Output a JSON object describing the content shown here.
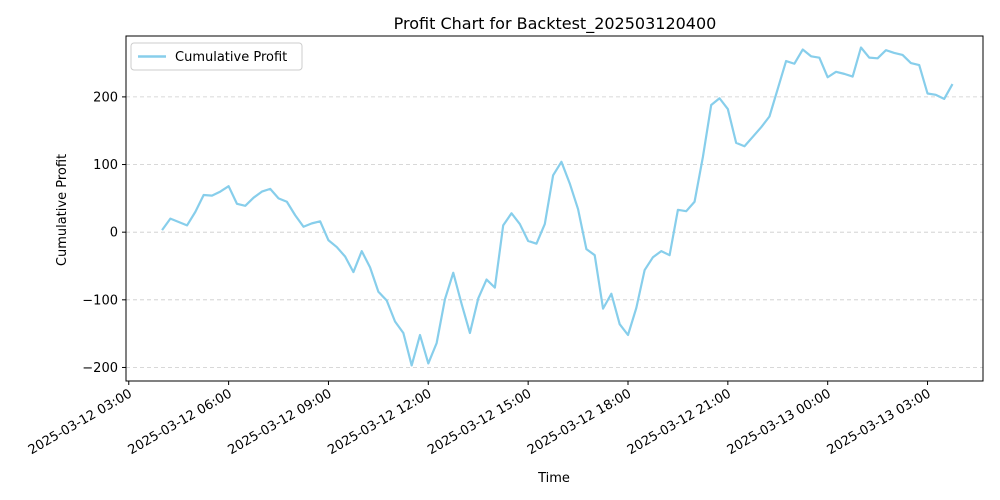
{
  "chart_data": {
    "type": "line",
    "title": "Profit Chart for Backtest_202503120400",
    "xlabel": "Time",
    "ylabel": "Cumulative Profit",
    "x_axis_type": "datetime",
    "xlim": [
      "2025-03-12 02:55",
      "2025-03-13 04:40"
    ],
    "ylim": [
      -220,
      290
    ],
    "grid": {
      "y": true,
      "x": false,
      "style": "dashed"
    },
    "legend": {
      "position": "top-left"
    },
    "x_ticks": [
      "2025-03-12 03:00",
      "2025-03-12 06:00",
      "2025-03-12 09:00",
      "2025-03-12 12:00",
      "2025-03-12 15:00",
      "2025-03-12 18:00",
      "2025-03-12 21:00",
      "2025-03-13 00:00",
      "2025-03-13 03:00"
    ],
    "y_ticks": [
      -200,
      -100,
      0,
      100,
      200
    ],
    "y_tick_labels": [
      "−200",
      "−100",
      "0",
      "100",
      "200"
    ],
    "series": [
      {
        "name": "Cumulative Profit",
        "color": "#87ceeb",
        "x": [
          "2025-03-12 04:00",
          "2025-03-12 04:15",
          "2025-03-12 04:30",
          "2025-03-12 04:45",
          "2025-03-12 05:00",
          "2025-03-12 05:15",
          "2025-03-12 05:30",
          "2025-03-12 05:45",
          "2025-03-12 06:00",
          "2025-03-12 06:15",
          "2025-03-12 06:30",
          "2025-03-12 06:45",
          "2025-03-12 07:00",
          "2025-03-12 07:15",
          "2025-03-12 07:30",
          "2025-03-12 07:45",
          "2025-03-12 08:00",
          "2025-03-12 08:15",
          "2025-03-12 08:30",
          "2025-03-12 08:45",
          "2025-03-12 09:00",
          "2025-03-12 09:15",
          "2025-03-12 09:30",
          "2025-03-12 09:45",
          "2025-03-12 10:00",
          "2025-03-12 10:15",
          "2025-03-12 10:30",
          "2025-03-12 10:45",
          "2025-03-12 11:00",
          "2025-03-12 11:15",
          "2025-03-12 11:30",
          "2025-03-12 11:45",
          "2025-03-12 12:00",
          "2025-03-12 12:15",
          "2025-03-12 12:30",
          "2025-03-12 12:45",
          "2025-03-12 13:00",
          "2025-03-12 13:15",
          "2025-03-12 13:30",
          "2025-03-12 13:45",
          "2025-03-12 14:00",
          "2025-03-12 14:15",
          "2025-03-12 14:30",
          "2025-03-12 14:45",
          "2025-03-12 15:00",
          "2025-03-12 15:15",
          "2025-03-12 15:30",
          "2025-03-12 15:45",
          "2025-03-12 16:00",
          "2025-03-12 16:15",
          "2025-03-12 16:30",
          "2025-03-12 16:45",
          "2025-03-12 17:00",
          "2025-03-12 17:15",
          "2025-03-12 17:30",
          "2025-03-12 17:45",
          "2025-03-12 18:00",
          "2025-03-12 18:15",
          "2025-03-12 18:30",
          "2025-03-12 18:45",
          "2025-03-12 19:00",
          "2025-03-12 19:15",
          "2025-03-12 19:30",
          "2025-03-12 19:45",
          "2025-03-12 20:00",
          "2025-03-12 20:15",
          "2025-03-12 20:30",
          "2025-03-12 20:45",
          "2025-03-12 21:00",
          "2025-03-12 21:15",
          "2025-03-12 21:30",
          "2025-03-12 21:45",
          "2025-03-12 22:00",
          "2025-03-12 22:15",
          "2025-03-12 22:30",
          "2025-03-12 22:45",
          "2025-03-12 23:00",
          "2025-03-12 23:15",
          "2025-03-12 23:30",
          "2025-03-12 23:45",
          "2025-03-13 00:00",
          "2025-03-13 00:15",
          "2025-03-13 00:30",
          "2025-03-13 00:45",
          "2025-03-13 01:00",
          "2025-03-13 01:15",
          "2025-03-13 01:30",
          "2025-03-13 01:45",
          "2025-03-13 02:00",
          "2025-03-13 02:15",
          "2025-03-13 02:30",
          "2025-03-13 02:45",
          "2025-03-13 03:00",
          "2025-03-13 03:15",
          "2025-03-13 03:30",
          "2025-03-13 03:45"
        ],
        "values": [
          3,
          20,
          15,
          10,
          30,
          55,
          54,
          60,
          68,
          42,
          39,
          51,
          60,
          64,
          50,
          45,
          25,
          8,
          13,
          16,
          -12,
          -22,
          -36,
          -59,
          -28,
          -52,
          -88,
          -101,
          -132,
          -149,
          -197,
          -152,
          -194,
          -164,
          -99,
          -60,
          -106,
          -149,
          -98,
          -70,
          -82,
          10,
          28,
          12,
          -13,
          -17,
          12,
          84,
          104,
          72,
          34,
          -25,
          -34,
          -113,
          -91,
          -136,
          -152,
          -112,
          -56,
          -37,
          -28,
          -34,
          33,
          31,
          45,
          111,
          188,
          198,
          182,
          132,
          127,
          141,
          155,
          171,
          212,
          253,
          249,
          270,
          260,
          258,
          229,
          237,
          234,
          230,
          273,
          258,
          257,
          269,
          265,
          262,
          250,
          247,
          205,
          203,
          197,
          219
        ]
      }
    ]
  }
}
